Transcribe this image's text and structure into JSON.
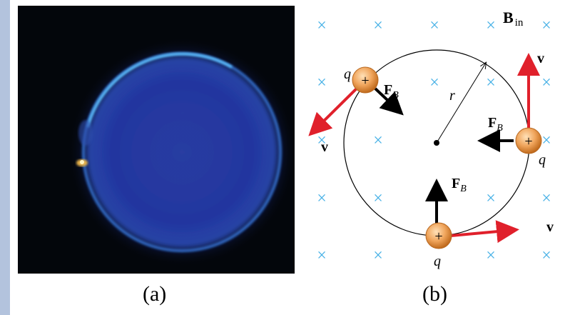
{
  "captions": {
    "a": "(a)",
    "b": "(b)"
  },
  "diagram": {
    "field_label": "B",
    "field_subscript": "in",
    "radius_label": "r",
    "charge_label": "q",
    "charge_symbol": "+",
    "force_label": "F",
    "force_subscript": "B",
    "velocity_label": "v",
    "field_marker": "×"
  },
  "colors": {
    "field_marker": "#47b1e6",
    "velocity_arrow": "#e0202b",
    "force_arrow": "#000000",
    "charge_fill": "#f0a55c",
    "side_strip": "#b3c3dd",
    "photo_background": "#03060b",
    "beam_ring": "#3e82ec"
  }
}
